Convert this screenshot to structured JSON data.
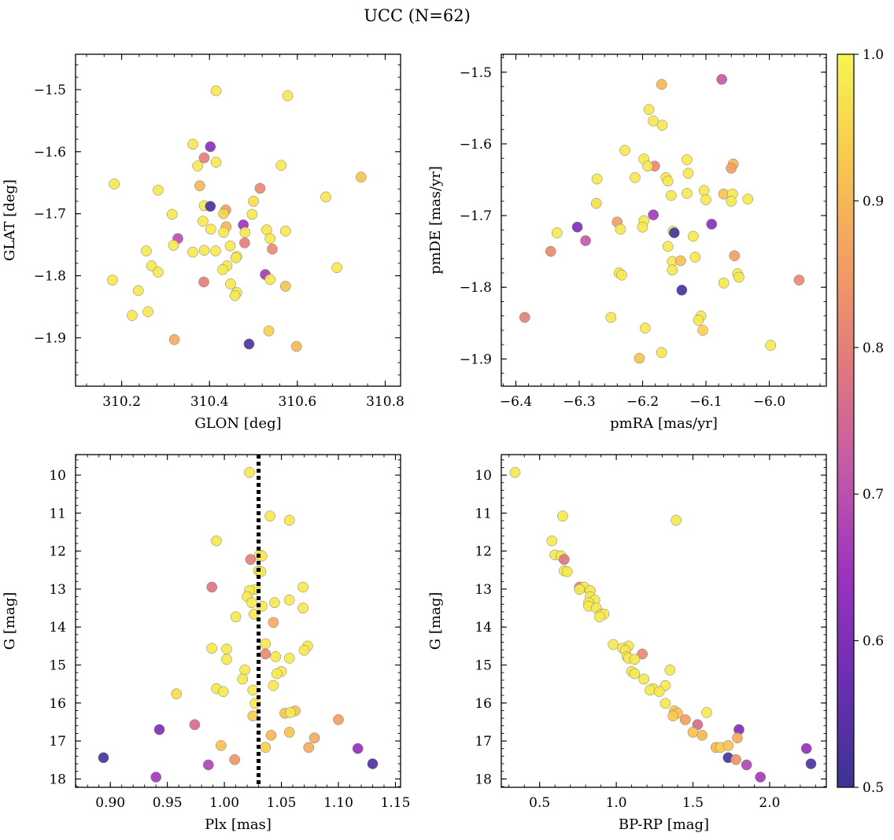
{
  "title": "UCC (N=62)",
  "colorbar": {
    "min": 0.5,
    "max": 1.0,
    "ticks": [
      "0.5",
      "0.6",
      "0.7",
      "0.8",
      "0.9",
      "1.0"
    ],
    "colormap": "plasma",
    "stops": [
      "#3b3494",
      "#6a2fb0",
      "#9b32c0",
      "#c258a8",
      "#e0787e",
      "#f29e63",
      "#f8c850",
      "#f5f551"
    ]
  },
  "chart_data": [
    {
      "type": "scatter",
      "xlabel": "GLON [deg]",
      "ylabel": "GLAT [deg]",
      "xlim": [
        310.095,
        310.835
      ],
      "ylim": [
        -1.978,
        -1.443
      ],
      "xticks": [
        "310.2",
        "310.4",
        "310.6",
        "310.8"
      ],
      "yticks": [
        "−1.5",
        "−1.6",
        "−1.7",
        "−1.8",
        "−1.9"
      ],
      "points": [
        [
          310.415,
          -1.502,
          0.98
        ],
        [
          310.578,
          -1.51,
          0.98
        ],
        [
          310.362,
          -1.588,
          0.98
        ],
        [
          310.402,
          -1.592,
          0.62
        ],
        [
          310.388,
          -1.61,
          0.8
        ],
        [
          310.415,
          -1.617,
          0.98
        ],
        [
          310.373,
          -1.623,
          0.98
        ],
        [
          310.563,
          -1.622,
          0.98
        ],
        [
          310.745,
          -1.641,
          0.92
        ],
        [
          310.183,
          -1.652,
          0.98
        ],
        [
          310.378,
          -1.655,
          0.9
        ],
        [
          310.283,
          -1.662,
          0.98
        ],
        [
          310.515,
          -1.659,
          0.82
        ],
        [
          310.665,
          -1.673,
          0.98
        ],
        [
          310.5,
          -1.68,
          0.96
        ],
        [
          310.388,
          -1.687,
          0.98
        ],
        [
          310.402,
          -1.688,
          0.52
        ],
        [
          310.437,
          -1.694,
          0.86
        ],
        [
          310.432,
          -1.7,
          0.95
        ],
        [
          310.315,
          -1.701,
          0.98
        ],
        [
          310.497,
          -1.701,
          0.98
        ],
        [
          310.385,
          -1.712,
          0.98
        ],
        [
          310.477,
          -1.718,
          0.65
        ],
        [
          310.438,
          -1.721,
          0.9
        ],
        [
          310.403,
          -1.725,
          0.98
        ],
        [
          310.53,
          -1.726,
          0.98
        ],
        [
          310.573,
          -1.728,
          0.98
        ],
        [
          310.481,
          -1.73,
          0.98
        ],
        [
          310.432,
          -1.73,
          0.98
        ],
        [
          310.328,
          -1.74,
          0.7
        ],
        [
          310.538,
          -1.74,
          0.98
        ],
        [
          310.48,
          -1.747,
          0.8
        ],
        [
          310.318,
          -1.751,
          0.98
        ],
        [
          310.447,
          -1.752,
          0.98
        ],
        [
          310.543,
          -1.757,
          0.82
        ],
        [
          310.256,
          -1.76,
          0.98
        ],
        [
          310.362,
          -1.762,
          0.98
        ],
        [
          310.388,
          -1.759,
          0.98
        ],
        [
          310.414,
          -1.76,
          0.98
        ],
        [
          310.462,
          -1.769,
          0.98
        ],
        [
          310.46,
          -1.771,
          0.98
        ],
        [
          310.44,
          -1.784,
          0.98
        ],
        [
          310.268,
          -1.784,
          0.98
        ],
        [
          310.69,
          -1.787,
          0.98
        ],
        [
          310.43,
          -1.79,
          0.98
        ],
        [
          310.283,
          -1.794,
          0.98
        ],
        [
          310.527,
          -1.798,
          0.66
        ],
        [
          310.179,
          -1.807,
          0.98
        ],
        [
          310.538,
          -1.806,
          0.98
        ],
        [
          310.387,
          -1.81,
          0.8
        ],
        [
          310.448,
          -1.813,
          0.98
        ],
        [
          310.573,
          -1.817,
          0.92
        ],
        [
          310.238,
          -1.824,
          0.98
        ],
        [
          310.462,
          -1.827,
          0.98
        ],
        [
          310.458,
          -1.832,
          0.98
        ],
        [
          310.26,
          -1.858,
          0.98
        ],
        [
          310.224,
          -1.864,
          0.98
        ],
        [
          310.535,
          -1.889,
          0.94
        ],
        [
          310.32,
          -1.903,
          0.88
        ],
        [
          310.49,
          -1.91,
          0.53
        ],
        [
          310.598,
          -1.914,
          0.9
        ]
      ]
    },
    {
      "type": "scatter",
      "xlabel": "pmRA [mas/yr]",
      "ylabel": "pmDE [mas/yr]",
      "xlim": [
        -6.423,
        -5.91
      ],
      "ylim": [
        -1.938,
        -1.475
      ],
      "xticks": [
        "−6.4",
        "−6.3",
        "−6.2",
        "−6.1",
        "−6.0"
      ],
      "yticks": [
        "−1.5",
        "−1.6",
        "−1.7",
        "−1.8",
        "−1.9"
      ],
      "points": [
        [
          -6.17,
          -1.517,
          0.9
        ],
        [
          -6.075,
          -1.51,
          0.72
        ],
        [
          -6.19,
          -1.552,
          0.98
        ],
        [
          -6.183,
          -1.568,
          0.98
        ],
        [
          -6.169,
          -1.574,
          0.98
        ],
        [
          -6.228,
          -1.609,
          0.98
        ],
        [
          -6.198,
          -1.621,
          0.98
        ],
        [
          -6.13,
          -1.622,
          0.98
        ],
        [
          -6.057,
          -1.628,
          0.9
        ],
        [
          -6.181,
          -1.631,
          0.82
        ],
        [
          -6.192,
          -1.631,
          0.98
        ],
        [
          -6.06,
          -1.634,
          0.86
        ],
        [
          -6.128,
          -1.641,
          0.98
        ],
        [
          -6.212,
          -1.647,
          0.98
        ],
        [
          -6.163,
          -1.647,
          0.98
        ],
        [
          -6.272,
          -1.649,
          0.98
        ],
        [
          -6.16,
          -1.652,
          0.98
        ],
        [
          -6.103,
          -1.665,
          0.98
        ],
        [
          -6.072,
          -1.67,
          0.92
        ],
        [
          -6.058,
          -1.67,
          0.98
        ],
        [
          -6.13,
          -1.669,
          0.98
        ],
        [
          -6.155,
          -1.672,
          0.98
        ],
        [
          -6.1,
          -1.678,
          0.98
        ],
        [
          -6.034,
          -1.677,
          0.98
        ],
        [
          -6.06,
          -1.68,
          0.98
        ],
        [
          -6.273,
          -1.683,
          0.96
        ],
        [
          -6.183,
          -1.699,
          0.66
        ],
        [
          -6.198,
          -1.707,
          0.98
        ],
        [
          -6.24,
          -1.709,
          0.86
        ],
        [
          -6.091,
          -1.712,
          0.62
        ],
        [
          -6.303,
          -1.716,
          0.6
        ],
        [
          -6.2,
          -1.716,
          0.98
        ],
        [
          -6.235,
          -1.719,
          0.98
        ],
        [
          -6.152,
          -1.722,
          0.98
        ],
        [
          -6.15,
          -1.724,
          0.52
        ],
        [
          -6.335,
          -1.724,
          0.98
        ],
        [
          -6.12,
          -1.729,
          0.98
        ],
        [
          -6.16,
          -1.743,
          0.98
        ],
        [
          -6.29,
          -1.735,
          0.72
        ],
        [
          -6.345,
          -1.75,
          0.82
        ],
        [
          -6.055,
          -1.756,
          0.86
        ],
        [
          -6.117,
          -1.758,
          0.98
        ],
        [
          -6.153,
          -1.764,
          0.98
        ],
        [
          -6.14,
          -1.763,
          0.92
        ],
        [
          -6.153,
          -1.776,
          0.98
        ],
        [
          -6.237,
          -1.78,
          0.98
        ],
        [
          -6.05,
          -1.781,
          0.98
        ],
        [
          -6.048,
          -1.786,
          0.98
        ],
        [
          -6.233,
          -1.783,
          0.98
        ],
        [
          -5.953,
          -1.79,
          0.82
        ],
        [
          -6.072,
          -1.794,
          0.98
        ],
        [
          -6.138,
          -1.804,
          0.52
        ],
        [
          -6.108,
          -1.84,
          0.98
        ],
        [
          -6.386,
          -1.842,
          0.8
        ],
        [
          -6.25,
          -1.842,
          0.98
        ],
        [
          -6.112,
          -1.846,
          0.98
        ],
        [
          -6.105,
          -1.86,
          0.94
        ],
        [
          -6.196,
          -1.857,
          0.98
        ],
        [
          -5.998,
          -1.881,
          0.98
        ],
        [
          -6.17,
          -1.891,
          0.98
        ],
        [
          -6.205,
          -1.899,
          0.92
        ]
      ]
    },
    {
      "type": "scatter",
      "xlabel": "Plx [mas]",
      "ylabel": "G [mag]",
      "xlim": [
        0.8695,
        1.1545
      ],
      "ylim": [
        18.22,
        9.46
      ],
      "y_inverted": true,
      "xticks": [
        "0.90",
        "0.95",
        "1.00",
        "1.05",
        "1.10",
        "1.15"
      ],
      "yticks": [
        "10",
        "11",
        "12",
        "13",
        "14",
        "15",
        "16",
        "17",
        "18"
      ],
      "vline": 1.03,
      "points": [
        [
          1.022,
          9.93,
          0.98
        ],
        [
          1.04,
          11.08,
          0.98
        ],
        [
          1.057,
          11.19,
          0.98
        ],
        [
          0.993,
          11.73,
          0.98
        ],
        [
          1.031,
          12.1,
          0.98
        ],
        [
          1.033,
          12.13,
          0.98
        ],
        [
          1.023,
          12.22,
          0.8
        ],
        [
          1.03,
          12.52,
          0.98
        ],
        [
          1.032,
          12.54,
          0.98
        ],
        [
          0.989,
          12.95,
          0.78
        ],
        [
          1.069,
          12.95,
          0.98
        ],
        [
          1.027,
          13.01,
          0.98
        ],
        [
          1.022,
          13.04,
          0.98
        ],
        [
          1.02,
          13.2,
          0.98
        ],
        [
          1.057,
          13.29,
          0.98
        ],
        [
          1.024,
          13.36,
          0.98
        ],
        [
          1.044,
          13.36,
          0.98
        ],
        [
          1.033,
          13.45,
          0.98
        ],
        [
          1.069,
          13.5,
          0.98
        ],
        [
          1.026,
          13.66,
          0.98
        ],
        [
          1.01,
          13.73,
          0.98
        ],
        [
          1.043,
          13.88,
          0.88
        ],
        [
          1.036,
          14.44,
          0.98
        ],
        [
          1.073,
          14.5,
          0.98
        ],
        [
          0.989,
          14.56,
          0.98
        ],
        [
          1.002,
          14.58,
          0.98
        ],
        [
          1.07,
          14.61,
          0.98
        ],
        [
          1.036,
          14.71,
          0.82
        ],
        [
          1.045,
          14.78,
          0.98
        ],
        [
          1.057,
          14.82,
          0.98
        ],
        [
          1.002,
          14.85,
          0.98
        ],
        [
          1.018,
          15.13,
          0.98
        ],
        [
          1.05,
          15.17,
          0.98
        ],
        [
          1.046,
          15.23,
          0.98
        ],
        [
          1.016,
          15.37,
          0.98
        ],
        [
          1.043,
          15.54,
          0.98
        ],
        [
          0.993,
          15.62,
          0.98
        ],
        [
          1.025,
          15.66,
          0.98
        ],
        [
          0.999,
          15.7,
          0.98
        ],
        [
          0.958,
          15.76,
          0.96
        ],
        [
          1.027,
          16.01,
          0.98
        ],
        [
          1.062,
          16.21,
          0.92
        ],
        [
          1.053,
          16.27,
          0.92
        ],
        [
          1.058,
          16.25,
          0.98
        ],
        [
          1.025,
          16.34,
          0.93
        ],
        [
          1.1,
          16.44,
          0.86
        ],
        [
          0.974,
          16.57,
          0.76
        ],
        [
          0.943,
          16.7,
          0.6
        ],
        [
          1.057,
          16.77,
          0.92
        ],
        [
          1.041,
          16.85,
          0.9
        ],
        [
          1.079,
          16.92,
          0.88
        ],
        [
          0.997,
          17.12,
          0.92
        ],
        [
          1.036,
          17.17,
          0.94
        ],
        [
          1.074,
          17.17,
          0.88
        ],
        [
          1.117,
          17.2,
          0.63
        ],
        [
          0.894,
          17.44,
          0.52
        ],
        [
          1.009,
          17.49,
          0.84
        ],
        [
          0.986,
          17.63,
          0.68
        ],
        [
          1.13,
          17.6,
          0.53
        ],
        [
          0.94,
          17.95,
          0.66
        ]
      ]
    },
    {
      "type": "scatter",
      "xlabel": "BP-RP [mag]",
      "ylabel": "G [mag]",
      "xlim": [
        0.25,
        2.37
      ],
      "ylim": [
        18.22,
        9.46
      ],
      "y_inverted": true,
      "xticks": [
        "0.5",
        "1.0",
        "1.5",
        "2.0"
      ],
      "yticks": [
        "10",
        "11",
        "12",
        "13",
        "14",
        "15",
        "16",
        "17",
        "18"
      ],
      "points": [
        [
          0.34,
          9.93,
          0.98
        ],
        [
          0.65,
          11.08,
          0.98
        ],
        [
          1.39,
          11.19,
          0.98
        ],
        [
          0.58,
          11.73,
          0.98
        ],
        [
          0.6,
          12.1,
          0.98
        ],
        [
          0.64,
          12.13,
          0.98
        ],
        [
          0.66,
          12.22,
          0.78
        ],
        [
          0.66,
          12.52,
          0.98
        ],
        [
          0.68,
          12.54,
          0.98
        ],
        [
          0.76,
          12.95,
          0.8
        ],
        [
          0.79,
          12.95,
          0.98
        ],
        [
          0.76,
          13.01,
          0.98
        ],
        [
          0.83,
          13.04,
          0.98
        ],
        [
          0.83,
          13.2,
          0.98
        ],
        [
          0.86,
          13.29,
          0.98
        ],
        [
          0.82,
          13.36,
          0.98
        ],
        [
          0.82,
          13.45,
          0.98
        ],
        [
          0.87,
          13.5,
          0.98
        ],
        [
          0.9,
          13.66,
          0.98
        ],
        [
          0.92,
          13.66,
          0.98
        ],
        [
          0.89,
          13.73,
          0.98
        ],
        [
          0.98,
          14.46,
          0.98
        ],
        [
          1.08,
          14.5,
          0.98
        ],
        [
          1.04,
          14.56,
          0.98
        ],
        [
          1.06,
          14.61,
          0.98
        ],
        [
          1.17,
          14.71,
          0.82
        ],
        [
          1.07,
          14.78,
          0.98
        ],
        [
          1.08,
          14.82,
          0.98
        ],
        [
          1.12,
          14.85,
          0.98
        ],
        [
          1.35,
          15.13,
          0.98
        ],
        [
          1.1,
          15.17,
          0.98
        ],
        [
          1.12,
          15.23,
          0.98
        ],
        [
          1.18,
          15.37,
          0.98
        ],
        [
          1.32,
          15.54,
          0.98
        ],
        [
          1.24,
          15.62,
          0.98
        ],
        [
          1.22,
          15.66,
          0.98
        ],
        [
          1.28,
          15.7,
          0.98
        ],
        [
          1.32,
          16.01,
          0.98
        ],
        [
          1.38,
          16.21,
          0.92
        ],
        [
          1.4,
          16.27,
          0.92
        ],
        [
          1.59,
          16.25,
          0.98
        ],
        [
          1.37,
          16.34,
          0.93
        ],
        [
          1.45,
          16.44,
          0.86
        ],
        [
          1.53,
          16.57,
          0.76
        ],
        [
          1.8,
          16.7,
          0.6
        ],
        [
          1.5,
          16.77,
          0.92
        ],
        [
          1.56,
          16.85,
          0.9
        ],
        [
          1.65,
          17.17,
          0.9
        ],
        [
          1.68,
          17.17,
          0.94
        ],
        [
          1.73,
          17.12,
          0.92
        ],
        [
          2.24,
          17.2,
          0.63
        ],
        [
          1.73,
          17.44,
          0.52
        ],
        [
          1.78,
          17.49,
          0.84
        ],
        [
          1.85,
          17.63,
          0.68
        ],
        [
          2.27,
          17.6,
          0.53
        ],
        [
          1.94,
          17.95,
          0.66
        ],
        [
          1.79,
          16.92,
          0.88
        ]
      ]
    }
  ]
}
